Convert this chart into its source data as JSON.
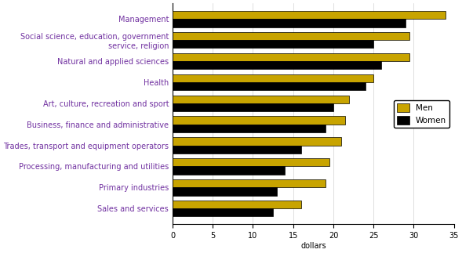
{
  "categories": [
    "Management",
    "Social science, education, government\nservice, religion",
    "Natural and applied sciences",
    "Health",
    "Art, culture, recreation and sport",
    "Business, finance and administrative",
    "Trades, transport and equipment operators",
    "Processing, manufacturing and utilities",
    "Primary industries",
    "Sales and services"
  ],
  "men_values": [
    34.0,
    29.5,
    29.5,
    25.0,
    22.0,
    21.5,
    21.0,
    19.5,
    19.0,
    16.0
  ],
  "women_values": [
    29.0,
    25.0,
    26.0,
    24.0,
    20.0,
    19.0,
    16.0,
    14.0,
    13.0,
    12.5
  ],
  "men_color": "#C8A400",
  "women_color": "#000000",
  "men_label": "Men",
  "women_label": "Women",
  "xlabel": "dollars",
  "xlim": [
    0,
    35
  ],
  "xticks": [
    0,
    5,
    10,
    15,
    20,
    25,
    30,
    35
  ],
  "label_color": "#7030A0",
  "background_color": "#ffffff",
  "bar_height": 0.38,
  "figsize": [
    5.89,
    3.23
  ],
  "dpi": 100
}
